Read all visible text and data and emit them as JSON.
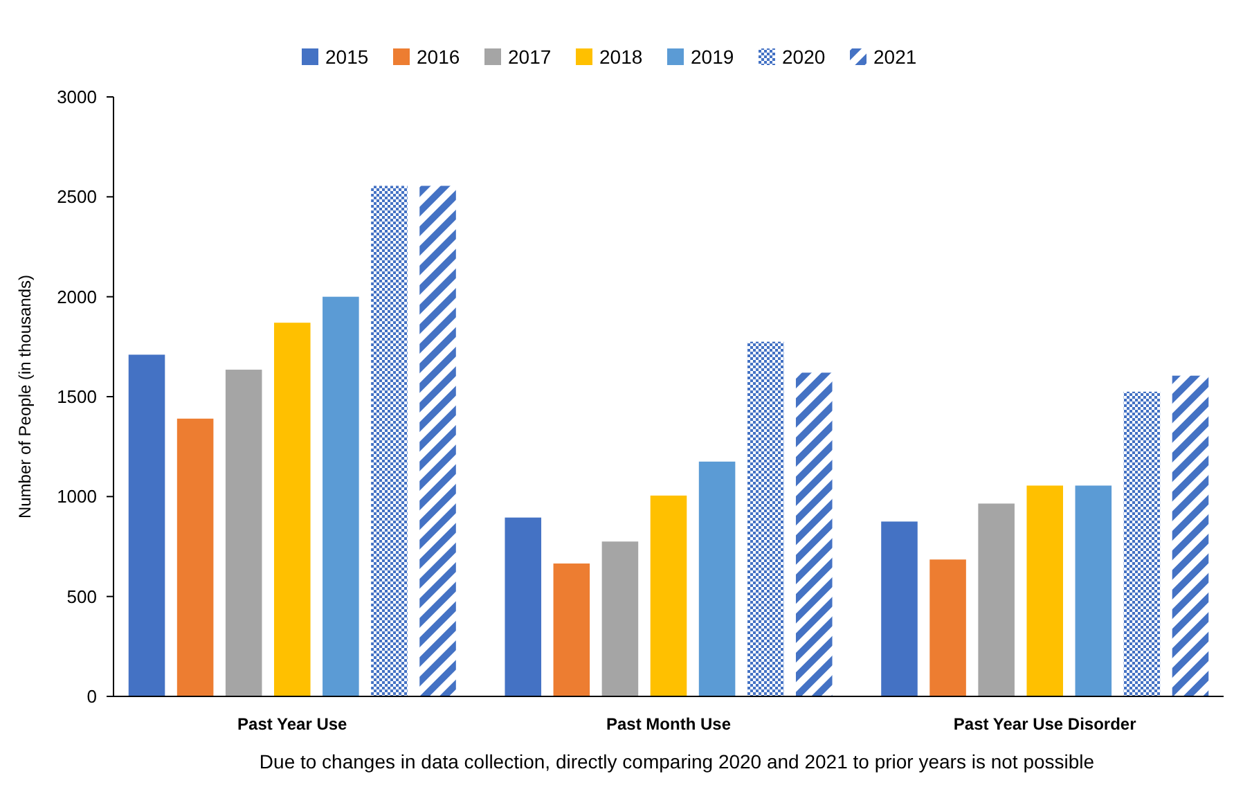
{
  "chart_data": {
    "type": "bar",
    "ylabel": "Number of People (in thousands)",
    "categories": [
      "Past Year Use",
      "Past Month Use",
      "Past Year Use Disorder"
    ],
    "series": [
      {
        "name": "2015",
        "color": "#4472c4",
        "values": [
          1710,
          895,
          875
        ]
      },
      {
        "name": "2016",
        "color": "#ed7d31",
        "values": [
          1390,
          665,
          685
        ]
      },
      {
        "name": "2017",
        "color": "#a5a5a5",
        "values": [
          1635,
          775,
          965
        ]
      },
      {
        "name": "2018",
        "color": "#ffc000",
        "values": [
          1870,
          1005,
          1055
        ]
      },
      {
        "name": "2019",
        "color": "#5b9bd5",
        "values": [
          2000,
          1175,
          1055
        ]
      },
      {
        "name": "2020",
        "color": "#4472c4",
        "values": [
          2555,
          1775,
          1525
        ]
      },
      {
        "name": "2021",
        "color": "#4472c4",
        "values": [
          2555,
          1620,
          1605
        ]
      }
    ],
    "ylim": [
      0,
      3000
    ],
    "yticks": [
      0,
      500,
      1000,
      1500,
      2000,
      2500,
      3000
    ],
    "legend": "top",
    "annotations": [
      "Due to changes in data collection, directly comparing 2020 and 2021 to prior years is not possible"
    ]
  }
}
